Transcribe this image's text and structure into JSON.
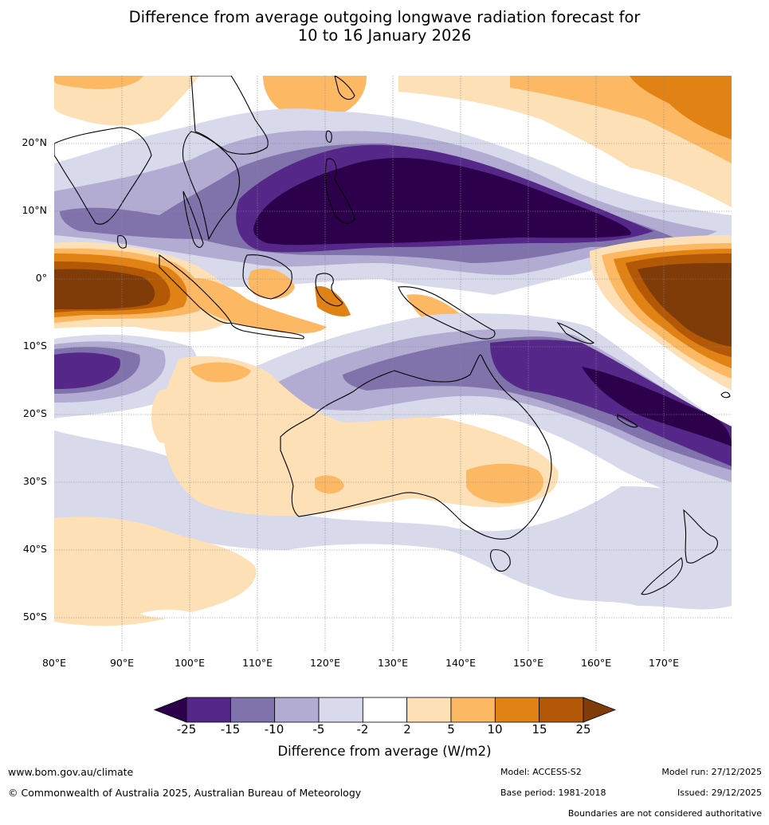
{
  "title": {
    "line1": "Difference from average outgoing longwave radiation forecast for",
    "line2": "10 to 16 January 2026"
  },
  "map": {
    "lat_labels": [
      "20°N",
      "10°N",
      "0°",
      "10°S",
      "20°S",
      "30°S",
      "40°S",
      "50°S"
    ],
    "lon_labels": [
      "80°E",
      "90°E",
      "100°E",
      "110°E",
      "120°E",
      "130°E",
      "140°E",
      "150°E",
      "160°E",
      "170°E"
    ],
    "extent": {
      "lon_min": 80,
      "lon_max": 180,
      "lat_min": -55,
      "lat_max": 30
    }
  },
  "colorbar": {
    "labels": [
      "-25",
      "-15",
      "-10",
      "-5",
      "-2",
      "2",
      "5",
      "10",
      "15",
      "25"
    ],
    "colors": [
      "#2d004b",
      "#542788",
      "#8073ac",
      "#b2abd2",
      "#d8daeb",
      "#ffffff",
      "#fee0b6",
      "#fdb863",
      "#e08214",
      "#b35806",
      "#7f3b08"
    ],
    "title": "Difference from average (W/m2)"
  },
  "footer": {
    "website": "www.bom.gov.au/climate",
    "copyright": "© Commonwealth of Australia 2025, Australian Bureau of Meteorology",
    "model": "Model: ACCESS-S2",
    "base_period": "Base period: 1981-2018",
    "model_run": "Model run: 27/12/2025",
    "issued": "Issued: 29/12/2025",
    "disclaimer": "Boundaries are not considered authoritative"
  }
}
